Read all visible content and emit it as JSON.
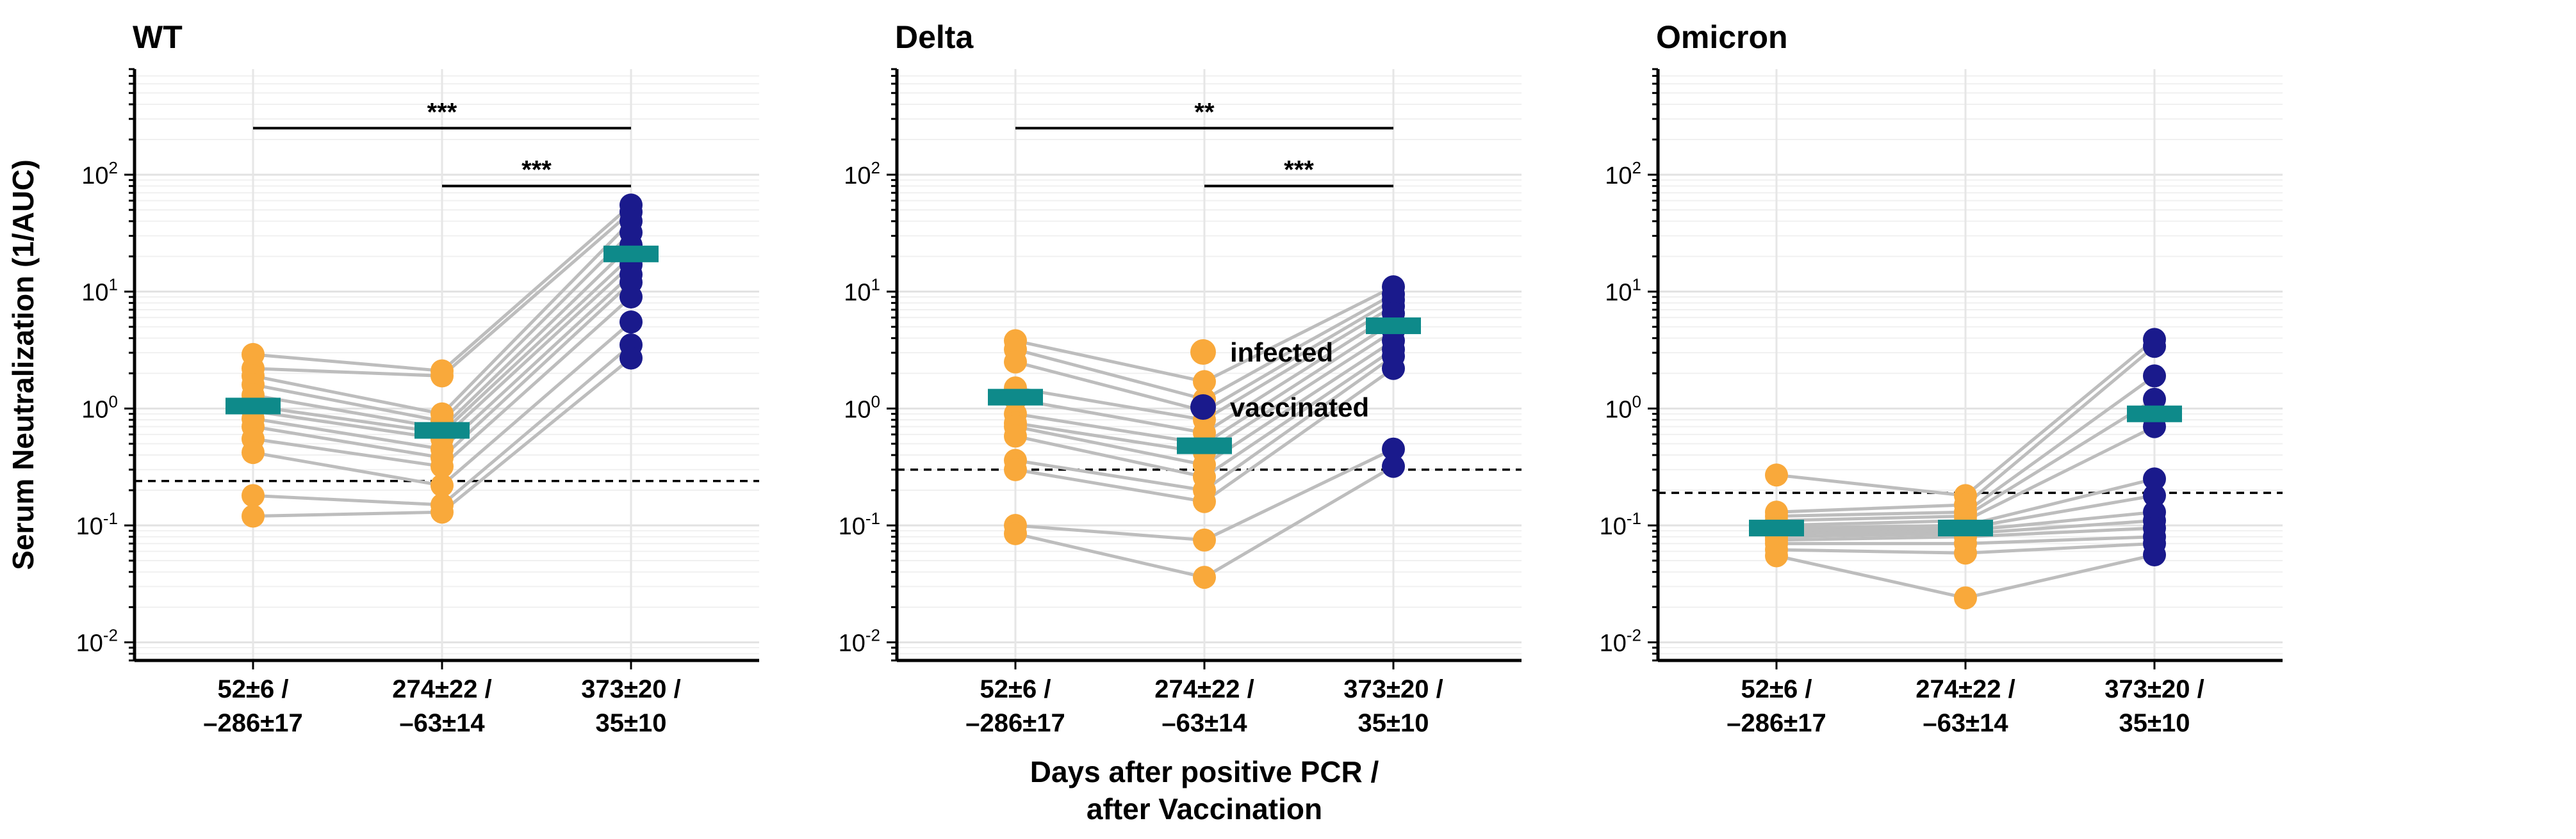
{
  "figure": {
    "y_axis_title": "Serum Neutralization (1/AUC)",
    "x_axis_title_line1": "Days after positive PCR /",
    "x_axis_title_line2": "after Vaccination",
    "colors": {
      "infected": "#F9A93B",
      "vaccinated": "#1A1A8C",
      "median": "#0E8A8A",
      "lines": "#BDBDBD",
      "threshold": "#000000"
    }
  },
  "legend": {
    "items": [
      {
        "label": "infected",
        "color": "#F9A93B"
      },
      {
        "label": "vaccinated",
        "color": "#1A1A8C"
      }
    ]
  },
  "chart_data": [
    {
      "type": "scatter",
      "title": "WT",
      "yscale": "log",
      "ylim": [
        0.007,
        800
      ],
      "yticks": [
        {
          "base": "10",
          "exp": "2"
        },
        {
          "base": "10",
          "exp": "1"
        },
        {
          "base": "10",
          "exp": "0"
        },
        {
          "base": "10",
          "exp": "-1"
        },
        {
          "base": "10",
          "exp": "-2"
        }
      ],
      "categories": [
        {
          "line1": "52±6 /",
          "line2": "–286±17"
        },
        {
          "line1": "274±22 /",
          "line2": "–63±14"
        },
        {
          "line1": "373±20 /",
          "line2": "35±10"
        }
      ],
      "point_groups": [
        "infected",
        "infected",
        "vaccinated"
      ],
      "threshold": 0.24,
      "medians": [
        1.05,
        0.65,
        21
      ],
      "subjects": [
        [
          2.9,
          2.1,
          55
        ],
        [
          2.2,
          1.9,
          48
        ],
        [
          1.9,
          0.9,
          40
        ],
        [
          1.6,
          0.78,
          32
        ],
        [
          1.3,
          0.68,
          25
        ],
        [
          1.05,
          0.62,
          20
        ],
        [
          0.95,
          0.55,
          17
        ],
        [
          0.82,
          0.45,
          14
        ],
        [
          0.7,
          0.38,
          12
        ],
        [
          0.55,
          0.32,
          9
        ],
        [
          0.42,
          0.22,
          5.5
        ],
        [
          0.18,
          0.15,
          3.5
        ],
        [
          0.12,
          0.13,
          2.7
        ]
      ],
      "significance": [
        {
          "from": 0,
          "to": 2,
          "label": "***",
          "y": 250
        },
        {
          "from": 1,
          "to": 2,
          "label": "***",
          "y": 80
        }
      ]
    },
    {
      "type": "scatter",
      "title": "Delta",
      "yscale": "log",
      "ylim": [
        0.007,
        800
      ],
      "yticks": [
        {
          "base": "10",
          "exp": "2"
        },
        {
          "base": "10",
          "exp": "1"
        },
        {
          "base": "10",
          "exp": "0"
        },
        {
          "base": "10",
          "exp": "-1"
        },
        {
          "base": "10",
          "exp": "-2"
        }
      ],
      "categories": [
        {
          "line1": "52±6 /",
          "line2": "–286±17"
        },
        {
          "line1": "274±22 /",
          "line2": "–63±14"
        },
        {
          "line1": "373±20 /",
          "line2": "35±10"
        }
      ],
      "point_groups": [
        "infected",
        "infected",
        "vaccinated"
      ],
      "threshold": 0.3,
      "medians": [
        1.25,
        0.48,
        5.1
      ],
      "subjects": [
        [
          3.8,
          1.7,
          11
        ],
        [
          3.2,
          1.2,
          9.5
        ],
        [
          2.5,
          0.95,
          8.5
        ],
        [
          1.5,
          0.8,
          7.5
        ],
        [
          1.2,
          0.62,
          6.5
        ],
        [
          0.9,
          0.5,
          5.5
        ],
        [
          0.75,
          0.42,
          4.6
        ],
        [
          0.7,
          0.33,
          3.8
        ],
        [
          0.58,
          0.26,
          3.2
        ],
        [
          0.36,
          0.2,
          2.8
        ],
        [
          0.3,
          0.16,
          2.2
        ],
        [
          0.1,
          0.075,
          0.45
        ],
        [
          0.085,
          0.036,
          0.32
        ]
      ],
      "significance": [
        {
          "from": 0,
          "to": 2,
          "label": "**",
          "y": 250
        },
        {
          "from": 1,
          "to": 2,
          "label": "***",
          "y": 80
        }
      ]
    },
    {
      "type": "scatter",
      "title": "Omicron",
      "yscale": "log",
      "ylim": [
        0.007,
        800
      ],
      "yticks": [
        {
          "base": "10",
          "exp": "2"
        },
        {
          "base": "10",
          "exp": "1"
        },
        {
          "base": "10",
          "exp": "0"
        },
        {
          "base": "10",
          "exp": "-1"
        },
        {
          "base": "10",
          "exp": "-2"
        }
      ],
      "categories": [
        {
          "line1": "52±6 /",
          "line2": "–286±17"
        },
        {
          "line1": "274±22 /",
          "line2": "–63±14"
        },
        {
          "line1": "373±20 /",
          "line2": "35±10"
        }
      ],
      "point_groups": [
        "infected",
        "infected",
        "vaccinated"
      ],
      "threshold": 0.19,
      "medians": [
        0.095,
        0.095,
        0.9
      ],
      "subjects": [
        [
          0.27,
          0.18,
          3.9
        ],
        [
          0.13,
          0.15,
          3.4
        ],
        [
          0.12,
          0.13,
          1.9
        ],
        [
          0.11,
          0.12,
          1.2
        ],
        [
          0.1,
          0.11,
          0.7
        ],
        [
          0.095,
          0.1,
          0.25
        ],
        [
          0.09,
          0.095,
          0.18
        ],
        [
          0.085,
          0.09,
          0.13
        ],
        [
          0.08,
          0.085,
          0.11
        ],
        [
          0.075,
          0.08,
          0.095
        ],
        [
          0.07,
          0.07,
          0.08
        ],
        [
          0.062,
          0.058,
          0.07
        ],
        [
          0.055,
          0.024,
          0.056
        ]
      ],
      "significance": []
    }
  ]
}
